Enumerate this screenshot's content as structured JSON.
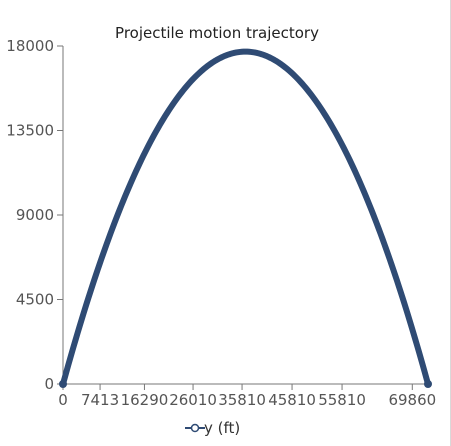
{
  "chart_data": {
    "type": "line",
    "title": "Projectile motion trajectory",
    "xlabel": "",
    "ylabel": "",
    "x_ticks": [
      0,
      7413,
      16290,
      26010,
      35810,
      45810,
      55810,
      69860
    ],
    "y_ticks": [
      0,
      4500,
      9000,
      13500,
      18000
    ],
    "xlim": [
      0,
      73000
    ],
    "ylim": [
      0,
      18000
    ],
    "grid": false,
    "legend_position": "bottom-center",
    "series": [
      {
        "name": "y (ft)",
        "color": "#2f4b74",
        "x_max": 73000,
        "y_max": 17700,
        "x": [
          0,
          4000,
          8000,
          12000,
          16000,
          20000,
          24000,
          28000,
          32000,
          35000,
          36000,
          40000,
          44000,
          48000,
          52000,
          56000,
          60000,
          64000,
          68000,
          73000
        ],
        "y": [
          0,
          3700,
          6957,
          9773,
          12148,
          14082,
          15576,
          16629,
          17242,
          17406,
          17415,
          17143,
          16430,
          15276,
          13682,
          11648,
          9173,
          6258,
          2902,
          0
        ]
      }
    ]
  }
}
